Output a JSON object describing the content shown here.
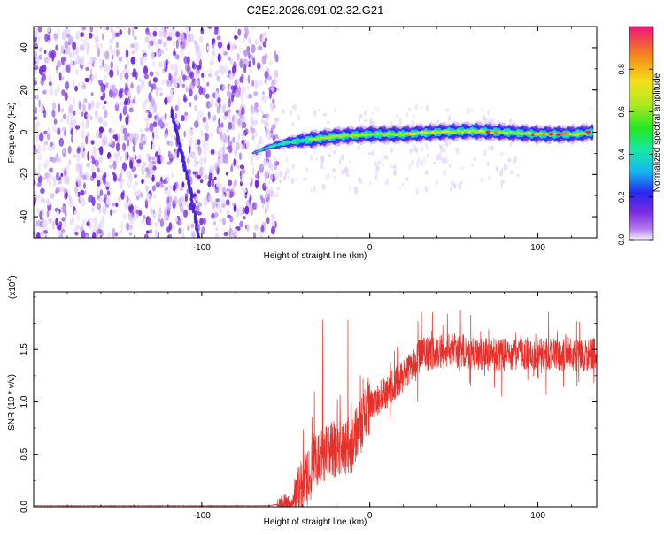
{
  "title": "C2E2.2026.091.02.32.G21",
  "chart_data": [
    {
      "type": "heatmap",
      "name": "spectrogram",
      "xlabel": "Height of straight line (km)",
      "ylabel": "Frequency (Hz)",
      "xlim": [
        -200,
        135
      ],
      "ylim": [
        -50,
        50
      ],
      "xticks": [
        -100,
        0,
        100
      ],
      "yticks": [
        -40,
        -20,
        0,
        20,
        40
      ],
      "ridge": [
        {
          "x": -70,
          "y": -10
        },
        {
          "x": -60,
          "y": -7
        },
        {
          "x": -50,
          "y": -5
        },
        {
          "x": -40,
          "y": -4
        },
        {
          "x": -30,
          "y": -3
        },
        {
          "x": -20,
          "y": -2
        },
        {
          "x": 0,
          "y": -1
        },
        {
          "x": 20,
          "y": -1
        },
        {
          "x": 40,
          "y": 0
        },
        {
          "x": 60,
          "y": 0.5
        },
        {
          "x": 80,
          "y": 0
        },
        {
          "x": 100,
          "y": -1
        },
        {
          "x": 120,
          "y": -1
        },
        {
          "x": 133,
          "y": 0
        }
      ],
      "diagonal_trace": [
        {
          "x": -118,
          "y": 10
        },
        {
          "x": -112,
          "y": -10
        },
        {
          "x": -106,
          "y": -30
        },
        {
          "x": -102,
          "y": -50
        }
      ],
      "colorbar": {
        "label": "Normalized spectral amplitude",
        "range": [
          0,
          1
        ],
        "ticks": [
          "0.0",
          "0.2",
          "0.4",
          "0.6",
          "0.8"
        ],
        "tick_values": [
          0,
          0.2,
          0.4,
          0.6,
          0.8
        ]
      }
    },
    {
      "type": "line",
      "name": "snr",
      "xlabel": "Height of straight line (km)",
      "ylabel": "SNR (10 * v/v)",
      "scale_label": "(x10",
      "scale_exponent": "4",
      "scale_close": ")",
      "xlim": [
        -200,
        135
      ],
      "ylim": [
        0,
        2.05
      ],
      "xticks": [
        -100,
        0,
        100
      ],
      "yticks": [
        "0.0",
        "0.5",
        "1.0",
        "1.5"
      ],
      "ytick_values": [
        0,
        0.5,
        1.0,
        1.5
      ],
      "series_color": "#e8302a",
      "envelope": [
        {
          "x": -200,
          "y": 0.01
        },
        {
          "x": -60,
          "y": 0.01
        },
        {
          "x": -45,
          "y": 0.05
        },
        {
          "x": -38,
          "y": 0.25
        },
        {
          "x": -30,
          "y": 0.5
        },
        {
          "x": -20,
          "y": 0.55
        },
        {
          "x": -10,
          "y": 0.6
        },
        {
          "x": 0,
          "y": 0.95
        },
        {
          "x": 10,
          "y": 1.1
        },
        {
          "x": 20,
          "y": 1.25
        },
        {
          "x": 30,
          "y": 1.45
        },
        {
          "x": 50,
          "y": 1.5
        },
        {
          "x": 70,
          "y": 1.45
        },
        {
          "x": 90,
          "y": 1.45
        },
        {
          "x": 110,
          "y": 1.45
        },
        {
          "x": 135,
          "y": 1.45
        }
      ],
      "spikes": [
        {
          "x": -28,
          "y": 1.78
        },
        {
          "x": -13,
          "y": 1.78
        },
        {
          "x": -33,
          "y": 1.1
        }
      ]
    }
  ]
}
